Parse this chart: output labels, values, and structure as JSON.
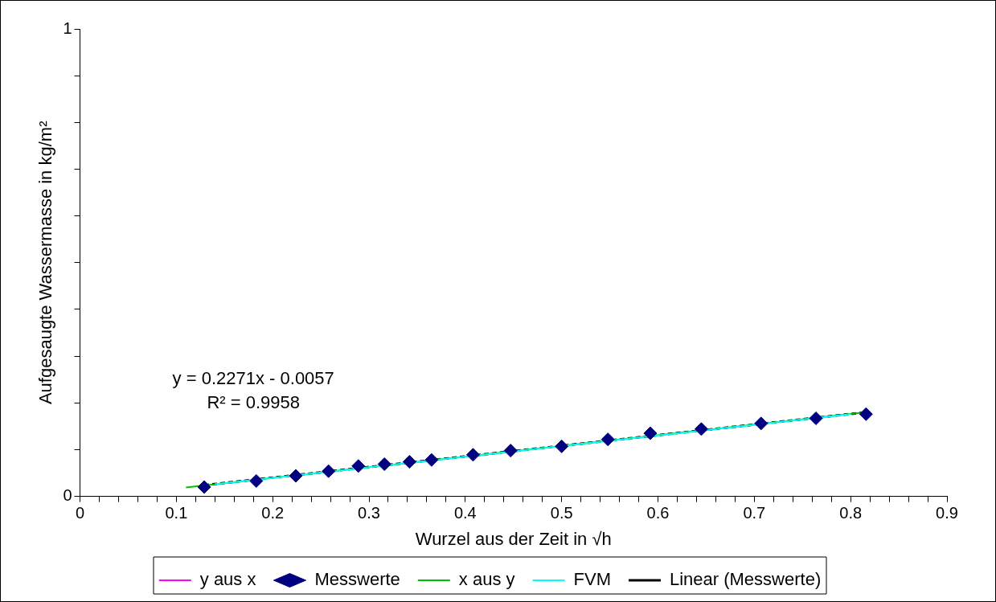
{
  "chart_data": {
    "type": "scatter",
    "xlabel": "Wurzel aus der Zeit in √h",
    "ylabel": "Aufgesaugte Wassermasse in kg/m²",
    "xlim": [
      0,
      0.9
    ],
    "ylim": [
      0,
      1
    ],
    "xticks": [
      0,
      {
        "value": 0.02,
        "label": null
      },
      {
        "value": 0.04,
        "label": null
      },
      {
        "value": 0.06,
        "label": null
      },
      {
        "value": 0.08,
        "label": null
      },
      0.1,
      {
        "value": 0.12,
        "label": null
      },
      {
        "value": 0.14,
        "label": null
      },
      {
        "value": 0.16,
        "label": null
      },
      {
        "value": 0.18,
        "label": null
      },
      0.2,
      {
        "value": 0.22,
        "label": null
      },
      {
        "value": 0.24,
        "label": null
      },
      {
        "value": 0.26,
        "label": null
      },
      {
        "value": 0.28,
        "label": null
      },
      0.3,
      {
        "value": 0.32,
        "label": null
      },
      {
        "value": 0.34,
        "label": null
      },
      {
        "value": 0.36,
        "label": null
      },
      {
        "value": 0.38,
        "label": null
      },
      0.4,
      {
        "value": 0.42,
        "label": null
      },
      {
        "value": 0.44,
        "label": null
      },
      {
        "value": 0.46,
        "label": null
      },
      {
        "value": 0.48,
        "label": null
      },
      0.5,
      {
        "value": 0.52,
        "label": null
      },
      {
        "value": 0.54,
        "label": null
      },
      {
        "value": 0.56,
        "label": null
      },
      {
        "value": 0.58,
        "label": null
      },
      0.6,
      {
        "value": 0.62,
        "label": null
      },
      {
        "value": 0.64,
        "label": null
      },
      {
        "value": 0.66,
        "label": null
      },
      {
        "value": 0.68,
        "label": null
      },
      0.7,
      {
        "value": 0.72,
        "label": null
      },
      {
        "value": 0.74,
        "label": null
      },
      {
        "value": 0.76,
        "label": null
      },
      {
        "value": 0.78,
        "label": null
      },
      0.8,
      {
        "value": 0.82,
        "label": null
      },
      {
        "value": 0.84,
        "label": null
      },
      {
        "value": 0.86,
        "label": null
      },
      {
        "value": 0.88,
        "label": null
      },
      0.9
    ],
    "yticks": [
      0,
      {
        "value": 0.1,
        "label": null
      },
      {
        "value": 0.2,
        "label": null
      },
      {
        "value": 0.3,
        "label": null
      },
      {
        "value": 0.4,
        "label": null
      },
      {
        "value": 0.5,
        "label": null
      },
      {
        "value": 0.6,
        "label": null
      },
      {
        "value": 0.7,
        "label": null
      },
      {
        "value": 0.8,
        "label": null
      },
      {
        "value": 0.9,
        "label": null
      },
      1
    ],
    "grid": false,
    "legend": "bottom",
    "annotations": [
      "y = 0.2271x - 0.0057",
      "R² = 0.9958"
    ],
    "series": [
      {
        "name": "y aus x",
        "type": "line",
        "color": "#ff00ff",
        "marker": "none"
      },
      {
        "name": "Messwerte",
        "type": "scatter",
        "color": "#000080",
        "marker": "diamond",
        "x": [
          0.129,
          0.183,
          0.224,
          0.258,
          0.289,
          0.316,
          0.342,
          0.365,
          0.408,
          0.447,
          0.5,
          0.548,
          0.592,
          0.645,
          0.707,
          0.764,
          0.816
        ],
        "values": [
          0.02,
          0.033,
          0.044,
          0.054,
          0.065,
          0.069,
          0.074,
          0.078,
          0.089,
          0.098,
          0.107,
          0.122,
          0.135,
          0.144,
          0.156,
          0.167,
          0.176
        ]
      },
      {
        "name": "x aus y",
        "type": "line",
        "color": "#00c000",
        "x": [
          0.11,
          0.82
        ],
        "values": [
          0.019,
          0.181
        ],
        "marker": "none"
      },
      {
        "name": "FVM",
        "type": "line",
        "color": "#00ffff",
        "x": [
          0.14,
          0.8
        ],
        "values": [
          0.026,
          0.176
        ],
        "marker": "none"
      },
      {
        "name": "Linear (Messwerte)",
        "type": "line",
        "color": "#000000",
        "line_style": "dashed",
        "x": [
          0.129,
          0.816
        ],
        "values": [
          0.024,
          0.18
        ],
        "marker": "none"
      }
    ]
  }
}
